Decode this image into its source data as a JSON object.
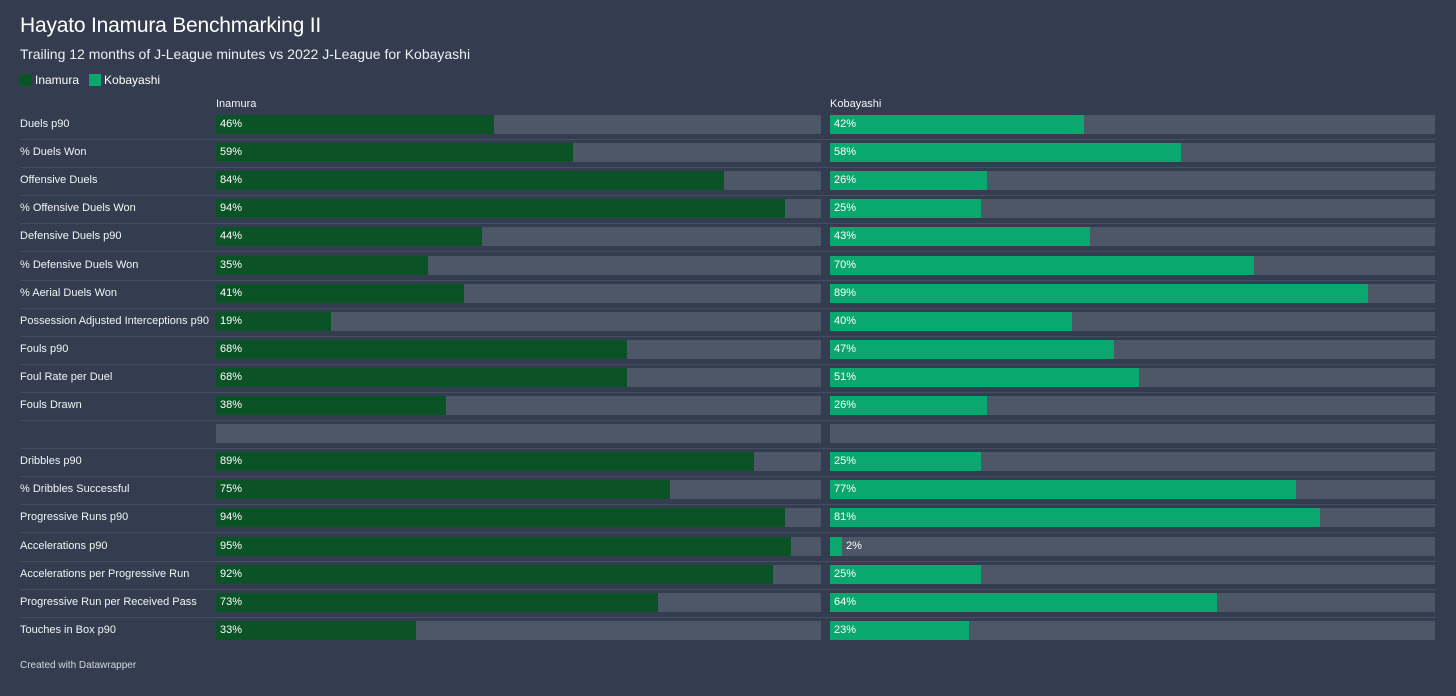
{
  "header": {
    "title": "Hayato Inamura Benchmarking II",
    "subtitle": "Trailing 12 months of J-League minutes vs 2022 J-League for Kobayashi"
  },
  "legend": [
    {
      "label": "Inamura",
      "color": "#0b5227"
    },
    {
      "label": "Kobayashi",
      "color": "#0aa86f"
    }
  ],
  "columns": {
    "left": "Inamura",
    "right": "Kobayashi"
  },
  "footer": "Created with Datawrapper",
  "chart_data": {
    "type": "bar",
    "orientation": "horizontal",
    "xlim": [
      0,
      100
    ],
    "unit": "%",
    "categories": [
      "Duels p90",
      "% Duels Won",
      "Offensive Duels",
      "% Offensive Duels Won",
      "Defensive Duels p90",
      "% Defensive Duels Won",
      "% Aerial Duels Won",
      "Possession Adjusted Interceptions p90",
      "Fouls p90",
      "Foul Rate per Duel",
      "Fouls Drawn",
      "",
      "Dribbles p90",
      "% Dribbles Successful",
      "Progressive Runs p90",
      "Accelerations p90",
      "Accelerations per Progressive Run",
      "Progressive Run per Received Pass",
      "Touches in Box p90"
    ],
    "series": [
      {
        "name": "Inamura",
        "values": [
          46,
          59,
          84,
          94,
          44,
          35,
          41,
          19,
          68,
          68,
          38,
          null,
          89,
          75,
          94,
          95,
          92,
          73,
          33
        ]
      },
      {
        "name": "Kobayashi",
        "values": [
          42,
          58,
          26,
          25,
          43,
          70,
          89,
          40,
          47,
          51,
          26,
          null,
          25,
          77,
          81,
          2,
          25,
          64,
          23
        ]
      }
    ]
  }
}
